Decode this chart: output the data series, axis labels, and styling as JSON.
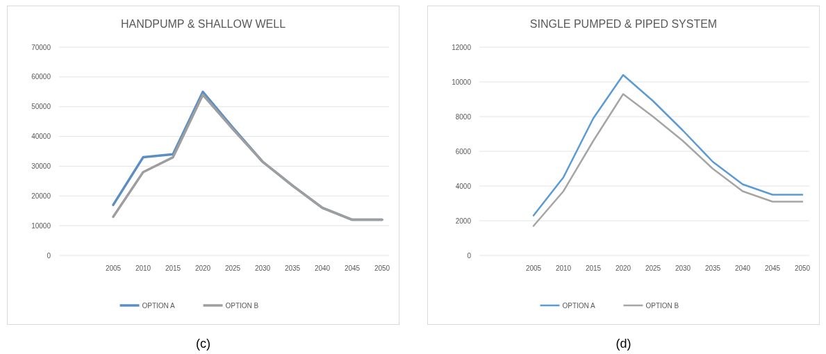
{
  "chart_data": [
    {
      "type": "line",
      "title": "HANDPUMP & SHALLOW WELL",
      "categories": [
        null,
        "2005",
        "2010",
        "2015",
        "2020",
        "2025",
        "2030",
        "2035",
        "2040",
        "2045",
        "2050"
      ],
      "series": [
        {
          "name": "OPTION A",
          "color": "#5b8fc4",
          "values": [
            null,
            17000,
            33000,
            34000,
            55000,
            43000,
            31500,
            23500,
            16000,
            12000,
            12000
          ]
        },
        {
          "name": "OPTION B",
          "color": "#9e9e9e",
          "values": [
            null,
            13000,
            28000,
            33000,
            54000,
            42500,
            31500,
            23500,
            16000,
            12000,
            12000
          ]
        }
      ],
      "ylim": [
        0,
        70000
      ],
      "yticks": [
        0,
        10000,
        20000,
        30000,
        40000,
        50000,
        60000,
        70000
      ],
      "grid": "y",
      "legend": "bottom",
      "annotations": [
        "(c)"
      ]
    },
    {
      "type": "line",
      "title": "SINGLE PUMPED & PIPED SYSTEM",
      "categories": [
        null,
        "2005",
        "2010",
        "2015",
        "2020",
        "2025",
        "2030",
        "2035",
        "2040",
        "2045",
        "2050"
      ],
      "series": [
        {
          "name": "OPTION A",
          "color": "#5b9bd5",
          "values": [
            null,
            2300,
            4500,
            7900,
            10400,
            8900,
            7200,
            5400,
            4100,
            3500,
            3500
          ]
        },
        {
          "name": "OPTION B",
          "color": "#a5a5a5",
          "values": [
            null,
            1700,
            3700,
            6600,
            9300,
            8000,
            6600,
            5000,
            3700,
            3100,
            3100
          ]
        }
      ],
      "ylim": [
        0,
        12000
      ],
      "yticks": [
        0,
        2000,
        4000,
        6000,
        8000,
        10000,
        12000
      ],
      "grid": "y",
      "legend": "bottom",
      "annotations": [
        "(d)"
      ]
    }
  ]
}
